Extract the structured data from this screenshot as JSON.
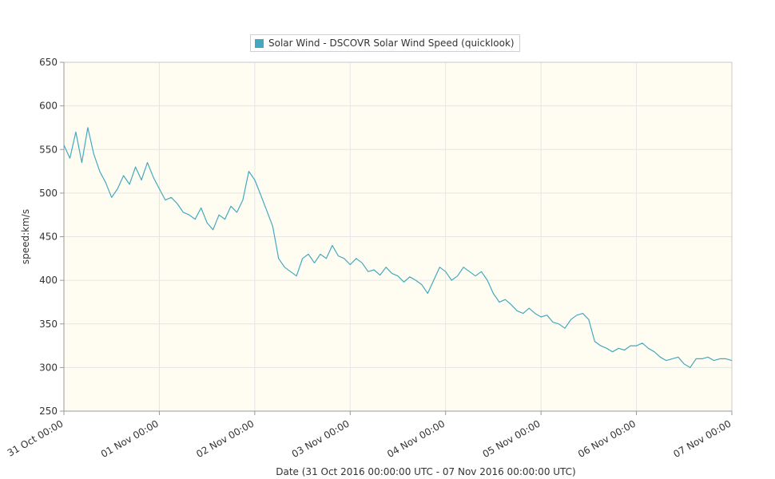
{
  "chart_data": {
    "type": "line",
    "title": "",
    "legend": {
      "label": "Solar Wind - DSCOVR Solar Wind Speed (quicklook)",
      "placement": "top-center"
    },
    "xlabel": "Date (31 Oct 2016 00:00:00 UTC - 07 Nov 2016 00:00:00 UTC)",
    "ylabel": "speed:km/s",
    "ylim": [
      250,
      650
    ],
    "yticks": [
      250,
      300,
      350,
      400,
      450,
      500,
      550,
      600,
      650
    ],
    "xlim": [
      "2016-10-31T00:00",
      "2016-11-07T00:00"
    ],
    "xticks": [
      {
        "t": "2016-10-31T00:00",
        "label": "31 Oct 00:00"
      },
      {
        "t": "2016-11-01T00:00",
        "label": "01 Nov 00:00"
      },
      {
        "t": "2016-11-02T00:00",
        "label": "02 Nov 00:00"
      },
      {
        "t": "2016-11-03T00:00",
        "label": "03 Nov 00:00"
      },
      {
        "t": "2016-11-04T00:00",
        "label": "04 Nov 00:00"
      },
      {
        "t": "2016-11-05T00:00",
        "label": "05 Nov 00:00"
      },
      {
        "t": "2016-11-06T00:00",
        "label": "06 Nov 00:00"
      },
      {
        "t": "2016-11-07T00:00",
        "label": "07 Nov 00:00"
      }
    ],
    "grid": true,
    "colors": {
      "series": "#44a9bf",
      "plot_background": "#fffdf2",
      "grid": "#e5e5e5"
    },
    "series": [
      {
        "name": "Solar Wind - DSCOVR Solar Wind Speed (quicklook)",
        "x": [
          "2016-10-31T00:00",
          "2016-10-31T01:30",
          "2016-10-31T03:00",
          "2016-10-31T04:30",
          "2016-10-31T06:00",
          "2016-10-31T07:30",
          "2016-10-31T09:00",
          "2016-10-31T10:30",
          "2016-10-31T12:00",
          "2016-10-31T13:30",
          "2016-10-31T15:00",
          "2016-10-31T16:30",
          "2016-10-31T18:00",
          "2016-10-31T19:30",
          "2016-10-31T21:00",
          "2016-10-31T22:30",
          "2016-11-01T00:00",
          "2016-11-01T01:30",
          "2016-11-01T03:00",
          "2016-11-01T04:30",
          "2016-11-01T06:00",
          "2016-11-01T07:30",
          "2016-11-01T09:00",
          "2016-11-01T10:30",
          "2016-11-01T12:00",
          "2016-11-01T13:30",
          "2016-11-01T15:00",
          "2016-11-01T16:30",
          "2016-11-01T18:00",
          "2016-11-01T19:30",
          "2016-11-01T21:00",
          "2016-11-01T22:30",
          "2016-11-02T00:00",
          "2016-11-02T01:30",
          "2016-11-02T03:00",
          "2016-11-02T04:30",
          "2016-11-02T06:00",
          "2016-11-02T07:30",
          "2016-11-02T09:00",
          "2016-11-02T10:30",
          "2016-11-02T12:00",
          "2016-11-02T13:30",
          "2016-11-02T15:00",
          "2016-11-02T16:30",
          "2016-11-02T18:00",
          "2016-11-02T19:30",
          "2016-11-02T21:00",
          "2016-11-02T22:30",
          "2016-11-03T00:00",
          "2016-11-03T01:30",
          "2016-11-03T03:00",
          "2016-11-03T04:30",
          "2016-11-03T06:00",
          "2016-11-03T07:30",
          "2016-11-03T09:00",
          "2016-11-03T10:30",
          "2016-11-03T12:00",
          "2016-11-03T13:30",
          "2016-11-03T15:00",
          "2016-11-03T16:30",
          "2016-11-03T18:00",
          "2016-11-03T19:30",
          "2016-11-03T21:00",
          "2016-11-03T22:30",
          "2016-11-04T00:00",
          "2016-11-04T01:30",
          "2016-11-04T03:00",
          "2016-11-04T04:30",
          "2016-11-04T06:00",
          "2016-11-04T07:30",
          "2016-11-04T09:00",
          "2016-11-04T10:30",
          "2016-11-04T12:00",
          "2016-11-04T13:30",
          "2016-11-04T15:00",
          "2016-11-04T16:30",
          "2016-11-04T18:00",
          "2016-11-04T19:30",
          "2016-11-04T21:00",
          "2016-11-04T22:30",
          "2016-11-05T00:00",
          "2016-11-05T01:30",
          "2016-11-05T03:00",
          "2016-11-05T04:30",
          "2016-11-05T06:00",
          "2016-11-05T07:30",
          "2016-11-05T09:00",
          "2016-11-05T10:30",
          "2016-11-05T12:00",
          "2016-11-05T13:30",
          "2016-11-05T15:00",
          "2016-11-05T16:30",
          "2016-11-05T18:00",
          "2016-11-05T19:30",
          "2016-11-05T21:00",
          "2016-11-05T22:30",
          "2016-11-06T00:00",
          "2016-11-06T01:30",
          "2016-11-06T03:00",
          "2016-11-06T04:30",
          "2016-11-06T06:00",
          "2016-11-06T07:30",
          "2016-11-06T09:00",
          "2016-11-06T10:30",
          "2016-11-06T12:00",
          "2016-11-06T13:30",
          "2016-11-06T15:00",
          "2016-11-06T16:30",
          "2016-11-06T18:00",
          "2016-11-06T19:30",
          "2016-11-06T21:00",
          "2016-11-06T22:30",
          "2016-11-07T00:00"
        ],
        "values": [
          555,
          540,
          570,
          535,
          575,
          545,
          525,
          512,
          495,
          505,
          520,
          510,
          530,
          515,
          535,
          518,
          505,
          492,
          495,
          488,
          478,
          475,
          470,
          483,
          466,
          458,
          475,
          470,
          485,
          478,
          492,
          525,
          515,
          498,
          480,
          462,
          425,
          415,
          410,
          405,
          425,
          430,
          420,
          430,
          425,
          440,
          428,
          425,
          418,
          425,
          420,
          410,
          412,
          406,
          415,
          408,
          405,
          398,
          404,
          400,
          395,
          385,
          400,
          415,
          410,
          400,
          405,
          415,
          410,
          405,
          410,
          400,
          385,
          375,
          378,
          372,
          365,
          362,
          368,
          362,
          358,
          360,
          352,
          350,
          345,
          355,
          360,
          362,
          355,
          330,
          325,
          322,
          318,
          322,
          320,
          325,
          325,
          328,
          322,
          318,
          312,
          308,
          310,
          312,
          304,
          300,
          310,
          310,
          312,
          308,
          310,
          310,
          308
        ]
      }
    ]
  }
}
